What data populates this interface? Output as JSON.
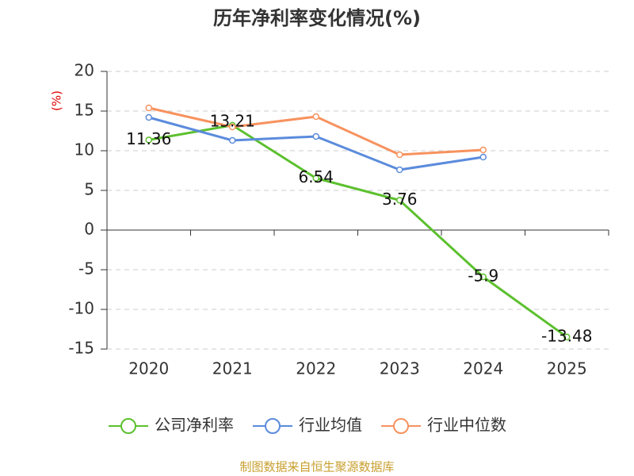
{
  "chart_data": {
    "type": "line",
    "title": "历年净利率变化情况(%)",
    "y_label": "(%)",
    "categories": [
      "2020",
      "2021",
      "2022",
      "2023",
      "2024",
      "2025"
    ],
    "series": [
      {
        "name": "公司净利率",
        "color": "#5cc02e",
        "values": [
          11.36,
          13.21,
          6.54,
          3.76,
          -5.9,
          -13.48
        ],
        "show_labels": true
      },
      {
        "name": "行业均值",
        "color": "#5b8bdc",
        "values": [
          14.2,
          11.3,
          11.8,
          7.6,
          9.2,
          null
        ],
        "show_labels": false
      },
      {
        "name": "行业中位数",
        "color": "#f7925e",
        "values": [
          15.4,
          13.0,
          14.3,
          9.5,
          10.1,
          null
        ],
        "show_labels": false
      }
    ],
    "ylim": [
      -15,
      20
    ],
    "yticks": [
      20,
      15,
      10,
      5,
      0,
      -5,
      -10,
      -15
    ],
    "grid": true,
    "legend": "bottom",
    "source": "制图数据来自恒生聚源数据库"
  }
}
